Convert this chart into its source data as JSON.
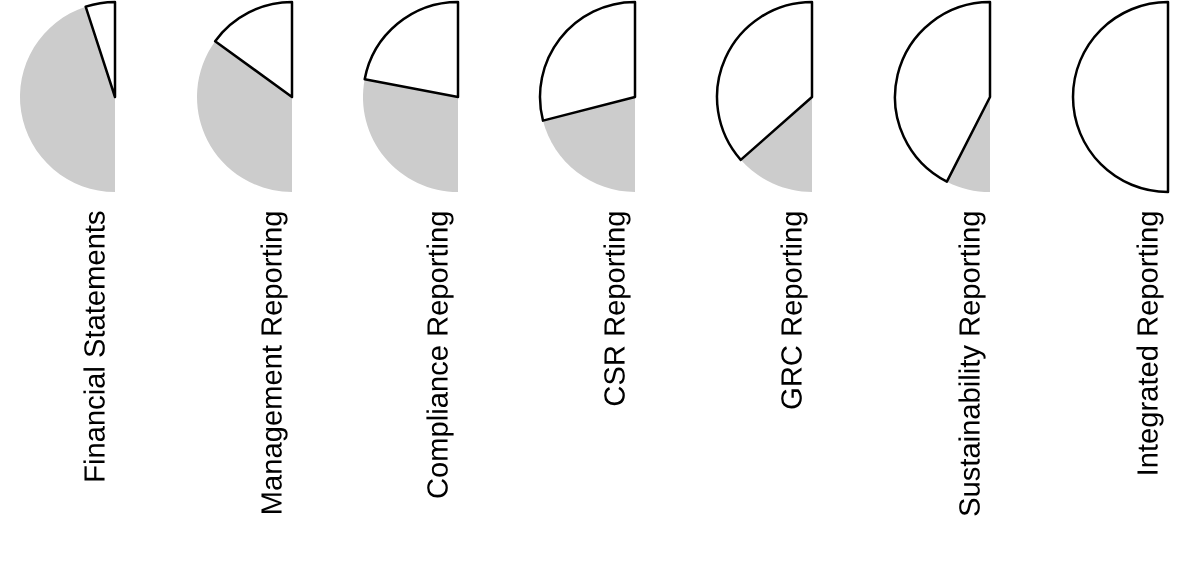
{
  "chart_data": [
    {
      "type": "pie",
      "title": "Financial Statements",
      "categories": [
        null,
        null
      ],
      "values": [
        10,
        90
      ],
      "colors": [
        "#ffffff",
        "#cccccc"
      ]
    },
    {
      "type": "pie",
      "title": "Management Reporting",
      "categories": [
        null,
        null
      ],
      "values": [
        30,
        70
      ],
      "colors": [
        "#ffffff",
        "#cccccc"
      ]
    },
    {
      "type": "pie",
      "title": "Compliance Reporting",
      "categories": [
        null,
        null
      ],
      "values": [
        44,
        56
      ],
      "colors": [
        "#ffffff",
        "#cccccc"
      ]
    },
    {
      "type": "pie",
      "title": "CSR Reporting",
      "categories": [
        null,
        null
      ],
      "values": [
        58,
        42
      ],
      "colors": [
        "#ffffff",
        "#cccccc"
      ]
    },
    {
      "type": "pie",
      "title": "GRC Reporting",
      "categories": [
        null,
        null
      ],
      "values": [
        73,
        27
      ],
      "colors": [
        "#ffffff",
        "#cccccc"
      ]
    },
    {
      "type": "pie",
      "title": "Sustainability Reporting",
      "categories": [
        null,
        null
      ],
      "values": [
        85,
        15
      ],
      "colors": [
        "#ffffff",
        "#cccccc"
      ]
    },
    {
      "type": "pie",
      "title": "Integrated Reporting",
      "categories": [
        null,
        null
      ],
      "values": [
        100,
        0
      ],
      "colors": [
        "#ffffff",
        "#cccccc"
      ]
    }
  ]
}
